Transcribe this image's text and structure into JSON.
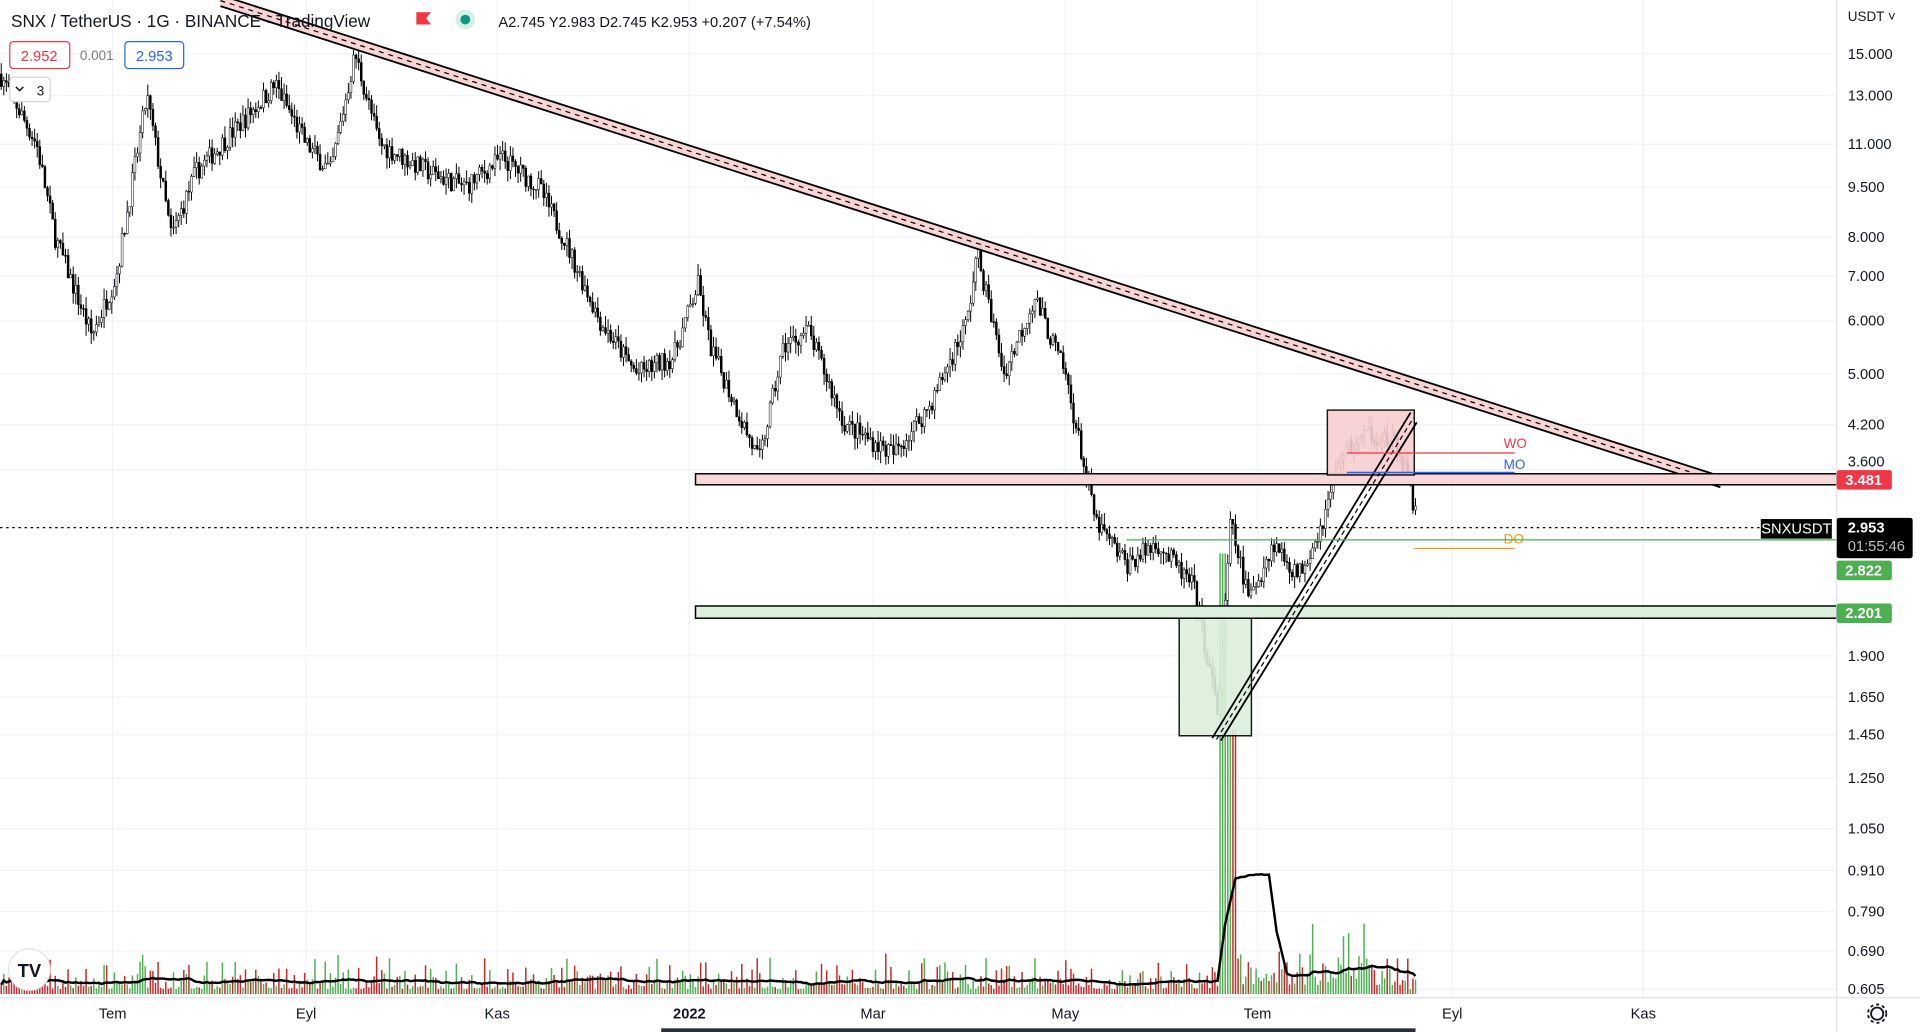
{
  "header": {
    "title": "SNX / TetherUS · 1G · BINANCE · TradingView",
    "ohlc": "A2.745 Y2.983 D2.745 K2.953 +0.207 (+7.54%)",
    "sell_price": "2.952",
    "spread": "0.001",
    "buy_price": "2.953",
    "indicators_count": "3",
    "currency": "USDT ˅"
  },
  "price_axis": {
    "ticks": [
      "15.000",
      "13.000",
      "11.000",
      "9.500",
      "8.000",
      "7.000",
      "6.000",
      "5.000",
      "4.200",
      "3.600",
      "1.900",
      "1.650",
      "1.450",
      "1.250",
      "1.050",
      "0.910",
      "0.790",
      "0.690",
      "0.605"
    ],
    "labels": {
      "resistance": "3.481",
      "last": "2.953",
      "countdown": "01:55:46",
      "green_line": "2.822",
      "support": "2.201"
    },
    "symbol_label": "SNXUSDT"
  },
  "time_axis": {
    "ticks": [
      "Tem",
      "Eyl",
      "Kas",
      "2022",
      "Mar",
      "May",
      "Tem",
      "Eyl",
      "Kas"
    ]
  },
  "levels": {
    "wo": "WO",
    "mo": "MO",
    "do": "DO"
  },
  "colors": {
    "up": "#4caf50",
    "down": "#d32f2f",
    "red_label": "#f23645",
    "green_label": "#4caf50",
    "blue": "#2962ff"
  },
  "logo": "TV"
}
